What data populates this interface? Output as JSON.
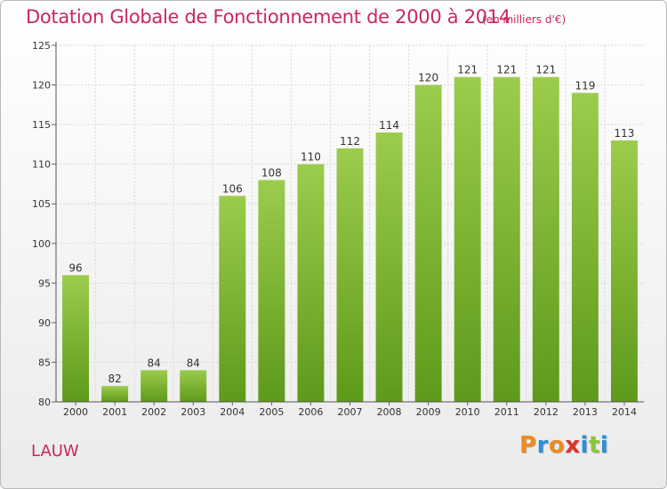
{
  "header": {
    "title": "Dotation Globale de Fonctionnement de 2000 à 2014",
    "unit": "(en milliers d'€)"
  },
  "footer": {
    "town": "LAUW",
    "logo": [
      "P",
      "r",
      "o",
      "x",
      "i",
      "t",
      "i"
    ]
  },
  "colors": {
    "title": "#c8285a",
    "bar_top": "#9ccc4c",
    "bar_bottom": "#5e9a1a",
    "logo": [
      "#f08a1c",
      "#2d8fd6",
      "#f08a1c",
      "#d8342c",
      "#2d8fd6",
      "#8cc63e",
      "#2d8fd6"
    ]
  },
  "chart_data": {
    "type": "bar",
    "categories": [
      "2000",
      "2001",
      "2002",
      "2003",
      "2004",
      "2005",
      "2006",
      "2007",
      "2008",
      "2009",
      "2010",
      "2011",
      "2012",
      "2013",
      "2014"
    ],
    "values": [
      96,
      82,
      84,
      84,
      106,
      108,
      110,
      112,
      114,
      120,
      121,
      121,
      121,
      119,
      113
    ],
    "ylim": [
      80,
      125
    ],
    "yticks": [
      80,
      85,
      90,
      95,
      100,
      105,
      110,
      115,
      120,
      125
    ],
    "grid": true,
    "data_labels": true
  }
}
